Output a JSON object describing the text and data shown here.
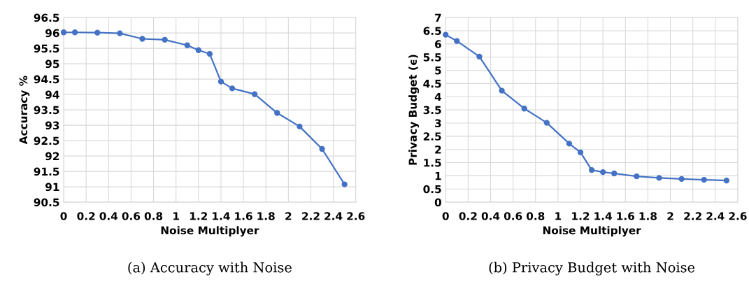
{
  "chart_data": [
    {
      "type": "line",
      "xlabel": "Noise Multiplyer",
      "ylabel": "Accuracy %",
      "annotations": [
        "(a) Accuracy with Noise"
      ],
      "x": [
        0,
        0.1,
        0.3,
        0.5,
        0.7,
        0.9,
        1.1,
        1.2,
        1.3,
        1.4,
        1.5,
        1.7,
        1.9,
        2.1,
        2.3,
        2.5
      ],
      "series": [
        {
          "color": "#4472c4",
          "values": [
            96.02,
            96.02,
            96.01,
            95.99,
            95.81,
            95.78,
            95.6,
            95.44,
            95.32,
            94.42,
            94.2,
            94.01,
            93.4,
            92.96,
            92.23,
            91.08
          ]
        }
      ],
      "xlim": [
        0,
        2.6
      ],
      "xticks": [
        0,
        0.2,
        0.4,
        0.6,
        0.8,
        1,
        1.2,
        1.4,
        1.6,
        1.8,
        2,
        2.2,
        2.4,
        2.6
      ],
      "ylim": [
        90.5,
        96.5
      ],
      "yticks": [
        90.5,
        91,
        91.5,
        92,
        92.5,
        93,
        93.5,
        94,
        94.5,
        95,
        95.5,
        96,
        96.5
      ],
      "grid": true,
      "marker": "circle",
      "line_style": "solid"
    },
    {
      "type": "line",
      "xlabel": "Noise Multiplyer",
      "ylabel": "Privacy Budget (ϵ)",
      "annotations": [
        "(b) Privacy Budget with Noise"
      ],
      "x": [
        0,
        0.1,
        0.3,
        0.5,
        0.7,
        0.9,
        1.1,
        1.2,
        1.3,
        1.4,
        1.5,
        1.7,
        1.9,
        2.1,
        2.3,
        2.5
      ],
      "series": [
        {
          "color": "#4472c4",
          "values": [
            6.35,
            6.11,
            5.52,
            4.23,
            3.55,
            3.01,
            2.22,
            1.89,
            1.22,
            1.14,
            1.09,
            0.98,
            0.92,
            0.88,
            0.85,
            0.82
          ]
        }
      ],
      "xlim": [
        0,
        2.6
      ],
      "xticks": [
        0,
        0.2,
        0.4,
        0.6,
        0.8,
        1,
        1.2,
        1.4,
        1.6,
        1.8,
        2,
        2.2,
        2.4,
        2.6
      ],
      "ylim": [
        0,
        7
      ],
      "yticks": [
        0,
        0.5,
        1,
        1.5,
        2,
        2.5,
        3,
        3.5,
        4,
        4.5,
        5,
        5.5,
        6,
        6.5,
        7
      ],
      "grid": true,
      "marker": "circle",
      "line_style": "solid"
    }
  ]
}
